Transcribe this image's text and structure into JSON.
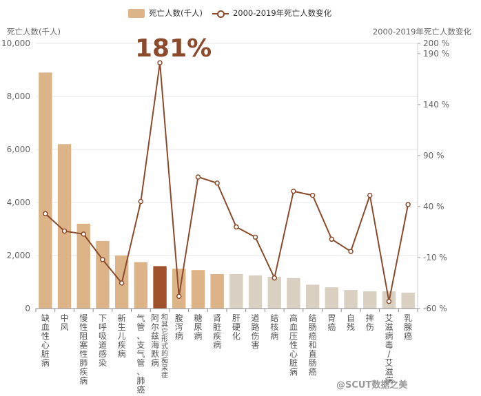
{
  "legend": {
    "bar_label": "死亡人数(千人)",
    "line_label": "2000-2019年死亡人数变化"
  },
  "left_axis_name": "死亡人数(千人)",
  "right_axis_name": "2000-2019年死亡人数变化",
  "highlight_text": "181%",
  "watermark": "@SCUT数据之美",
  "colors": {
    "bar_top": "#dcb487",
    "bar_highlight": "#a0502b",
    "bar_other": "#d9d0c2",
    "line": "#8a4a2b"
  },
  "chart_data": {
    "type": "bar",
    "categories": [
      "缺血性心脏病",
      "中风",
      "慢性阻塞性肺疾病",
      "下呼吸道感染",
      "新生儿疾病",
      "气管、支气管、肺癌",
      "阿尔兹海默病和其它形式的痴呆症",
      "腹泻病",
      "糖尿病",
      "肾脏疾病",
      "肝硬化",
      "道路伤害",
      "结核病",
      "高血压性心脏病",
      "结肠癌和直肠癌",
      "胃癌",
      "自残",
      "摔伤",
      "艾滋病毒/艾滋病",
      "乳腺癌"
    ],
    "tick_labels": [
      [
        "缺",
        "血",
        "性",
        "心",
        "脏",
        "病"
      ],
      [
        "中",
        "风"
      ],
      [
        "慢",
        "性",
        "阻",
        "塞",
        "性",
        "肺",
        "疾",
        "病"
      ],
      [
        "下",
        "呼",
        "吸",
        "道",
        "感",
        "染"
      ],
      [
        "新",
        "生",
        "儿",
        "疾",
        "病"
      ],
      [
        "气",
        "管",
        "、",
        "支",
        "气",
        "管",
        "、",
        "肺",
        "癌"
      ],
      [
        "阿",
        "尔",
        "兹",
        "海",
        "默",
        "病"
      ],
      [
        "腹",
        "泻",
        "病"
      ],
      [
        "糖",
        "尿",
        "病"
      ],
      [
        "肾",
        "脏",
        "疾",
        "病"
      ],
      [
        "肝",
        "硬",
        "化"
      ],
      [
        "道",
        "路",
        "伤",
        "害"
      ],
      [
        "结",
        "核",
        "病"
      ],
      [
        "高",
        "血",
        "压",
        "性",
        "心",
        "脏",
        "病"
      ],
      [
        "结",
        "肠",
        "癌",
        "和",
        "直",
        "肠",
        "癌"
      ],
      [
        "胃",
        "癌"
      ],
      [
        "自",
        "残"
      ],
      [
        "摔",
        "伤"
      ],
      [
        "艾",
        "滋",
        "病",
        "毒",
        "/",
        "艾",
        "滋",
        "病"
      ],
      [
        "乳",
        "腺",
        "癌"
      ]
    ],
    "tick_labels_second": [
      "",
      "",
      "",
      "",
      "",
      "",
      "和其它形式的痴呆症",
      "",
      "",
      "",
      "",
      "",
      "",
      "",
      "",
      "",
      "",
      "",
      "",
      ""
    ],
    "series": [
      {
        "name": "死亡人数(千人)",
        "type": "bar",
        "values": [
          8900,
          6200,
          3200,
          2550,
          2000,
          1750,
          1600,
          1500,
          1450,
          1300,
          1300,
          1250,
          1200,
          1150,
          900,
          800,
          700,
          650,
          650,
          600
        ]
      },
      {
        "name": "2000-2019年死亡人数变化",
        "type": "line",
        "axis": "right",
        "values": [
          33,
          16,
          13,
          -12,
          -35,
          45,
          181,
          -48,
          69,
          63,
          20,
          10,
          -30,
          55,
          51,
          8,
          -4,
          51,
          -53,
          42
        ]
      }
    ],
    "bar_color_groups": [
      "top",
      "top",
      "top",
      "top",
      "top",
      "top",
      "highlight",
      "top",
      "top",
      "top",
      "other",
      "other",
      "other",
      "other",
      "other",
      "other",
      "other",
      "other",
      "other",
      "other"
    ],
    "ylim_left": [
      0,
      10000
    ],
    "yticks_left": [
      "0",
      "2,000",
      "4,000",
      "6,000",
      "8,000",
      "10,000"
    ],
    "ylim_right": [
      -60,
      200
    ],
    "yticks_right": [
      "-60 %",
      "-10 %",
      "40 %",
      "90 %",
      "140 %",
      "190 %",
      "200 %"
    ],
    "yticks_right_values": [
      -60,
      -10,
      40,
      90,
      140,
      190,
      200
    ],
    "grid": true
  }
}
